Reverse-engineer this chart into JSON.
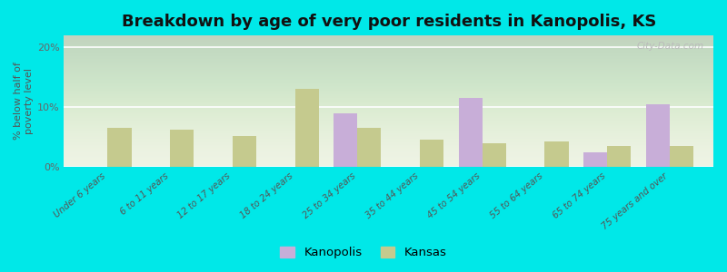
{
  "title": "Breakdown by age of very poor residents in Kanopolis, KS",
  "categories": [
    "Under 6 years",
    "6 to 11 years",
    "12 to 17 years",
    "18 to 24 years",
    "25 to 34 years",
    "35 to 44 years",
    "45 to 54 years",
    "55 to 64 years",
    "65 to 74 years",
    "75 years and over"
  ],
  "kanopolis": [
    0,
    0,
    0,
    0,
    9.0,
    0,
    11.5,
    0,
    2.5,
    10.5
  ],
  "kansas": [
    6.5,
    6.3,
    5.2,
    13.0,
    6.5,
    4.5,
    4.0,
    4.2,
    3.5,
    3.5
  ],
  "kanopolis_color": "#c8aed8",
  "kansas_color": "#c5ca8e",
  "fig_bg_color": "#00e8e8",
  "plot_bg_color": "#edf2e2",
  "ylabel": "% below half of\npoverty level",
  "ylim": [
    0,
    22
  ],
  "yticks": [
    0,
    10,
    20
  ],
  "ytick_labels": [
    "0%",
    "10%",
    "20%"
  ],
  "bar_width": 0.38,
  "title_fontsize": 13,
  "legend_kanopolis": "Kanopolis",
  "legend_kansas": "Kansas",
  "watermark": "City-Data.com"
}
